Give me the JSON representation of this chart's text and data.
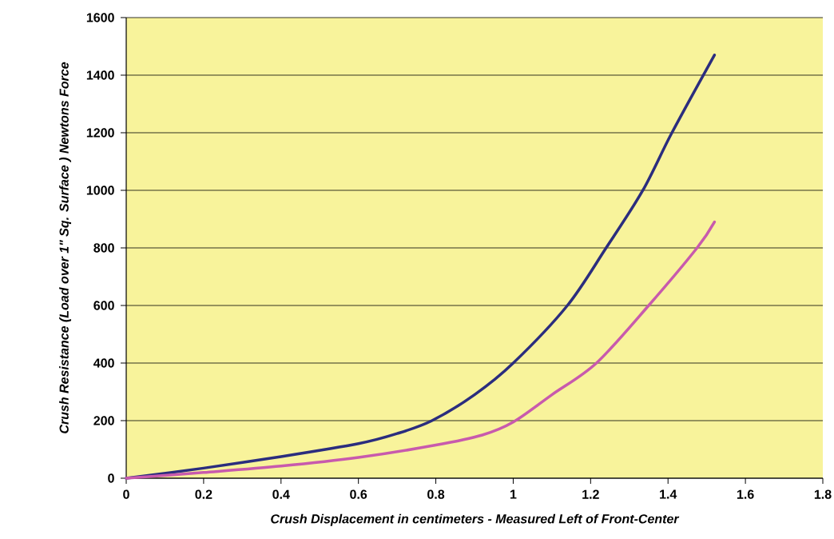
{
  "chart_data": {
    "type": "line",
    "xlabel": "Crush Displacement  in centimeters - Measured Left of Front-Center",
    "ylabel": "Crush Resistance  (Load over 1\" Sq. Surface ) Newtons  Force",
    "series": [
      {
        "color": "#2b2d7e",
        "x": [
          0,
          0.2,
          0.4,
          0.6,
          0.7,
          0.79,
          0.9,
          1.0,
          1.14,
          1.24,
          1.335,
          1.41,
          1.52
        ],
        "values": [
          0,
          35,
          75,
          120,
          155,
          200,
          290,
          400,
          600,
          800,
          1000,
          1200,
          1470
        ]
      },
      {
        "color": "#c85aad",
        "x": [
          0,
          0.2,
          0.4,
          0.6,
          0.8,
          0.92,
          1.0,
          1.1,
          1.215,
          1.35,
          1.475,
          1.52
        ],
        "values": [
          0,
          20,
          42,
          72,
          115,
          150,
          195,
          290,
          400,
          600,
          800,
          890
        ]
      }
    ],
    "xlim": [
      0,
      1.8
    ],
    "ylim": [
      0,
      1600
    ],
    "xticks": [
      0,
      0.2,
      0.4,
      0.6,
      0.8,
      1,
      1.2,
      1.4,
      1.6,
      1.8
    ],
    "yticks": [
      0,
      200,
      400,
      600,
      800,
      1000,
      1200,
      1400,
      1600
    ],
    "grid": "y",
    "marker": "none",
    "line_style": "solid"
  }
}
